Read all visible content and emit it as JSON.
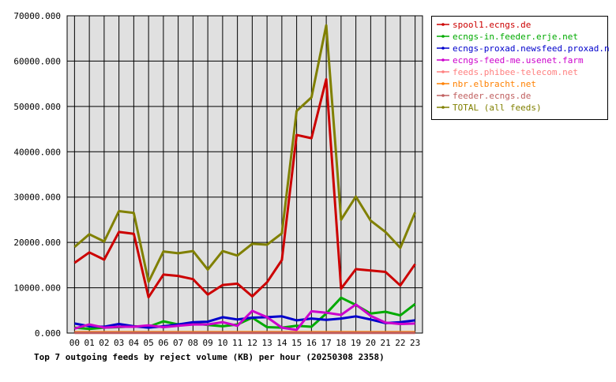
{
  "chart_data": {
    "type": "line",
    "title": "Top 7 outgoing feeds by reject volume (KB) per hour (20250308 2358)",
    "xlabel": "",
    "ylabel": "",
    "categories": [
      "00",
      "01",
      "02",
      "03",
      "04",
      "05",
      "06",
      "07",
      "08",
      "09",
      "10",
      "11",
      "12",
      "13",
      "14",
      "15",
      "16",
      "17",
      "18",
      "19",
      "20",
      "21",
      "22",
      "23"
    ],
    "ylim": [
      0,
      70000
    ],
    "yticks": [
      0,
      10000,
      20000,
      30000,
      40000,
      50000,
      60000,
      70000
    ],
    "ytick_labels": [
      "0.000",
      "10000.000",
      "20000.000",
      "30000.000",
      "40000.000",
      "50000.000",
      "60000.000",
      "70000.000"
    ],
    "grid": true,
    "legend_position": "right",
    "series": [
      {
        "name": "spool1.ecngs.de",
        "color": "#cc0000",
        "values": [
          15500,
          17800,
          16200,
          22300,
          21900,
          7900,
          12900,
          12600,
          11900,
          8500,
          10600,
          10900,
          8100,
          11200,
          16100,
          43700,
          43000,
          56000,
          9800,
          14100,
          13800,
          13500,
          10500,
          15200
        ]
      },
      {
        "name": "ecngs-in.feeder.erje.net",
        "color": "#00aa00",
        "values": [
          1200,
          900,
          1200,
          1300,
          1500,
          1400,
          2600,
          1900,
          2200,
          1800,
          1500,
          1900,
          3400,
          1300,
          1200,
          1600,
          1400,
          4300,
          7800,
          6200,
          4300,
          4700,
          3900,
          6400
        ]
      },
      {
        "name": "ecngs-proxad.newsfeed.proxad.net",
        "color": "#0000cc",
        "values": [
          2100,
          1500,
          1400,
          2000,
          1500,
          1200,
          1500,
          1900,
          2400,
          2500,
          3500,
          3000,
          3400,
          3500,
          3700,
          2800,
          3200,
          2900,
          3200,
          3700,
          3000,
          2200,
          2400,
          2800
        ]
      },
      {
        "name": "ecngs-feed-me.usenet.farm",
        "color": "#cc00cc",
        "values": [
          1000,
          1900,
          1200,
          1400,
          1400,
          1700,
          1300,
          1600,
          1900,
          1900,
          2400,
          1600,
          4900,
          3500,
          1200,
          700,
          4800,
          4500,
          4000,
          6300,
          3800,
          2300,
          2000,
          2100
        ]
      },
      {
        "name": "feeds.phibee-telecom.net",
        "color": "#ff8080",
        "values": [
          100,
          100,
          100,
          100,
          100,
          100,
          100,
          100,
          100,
          100,
          100,
          100,
          100,
          100,
          100,
          100,
          100,
          100,
          100,
          100,
          100,
          100,
          100,
          100
        ]
      },
      {
        "name": "nbr.elbracht.net",
        "color": "#ff8000",
        "values": [
          200,
          200,
          200,
          200,
          200,
          200,
          200,
          200,
          200,
          200,
          200,
          200,
          200,
          200,
          200,
          200,
          200,
          200,
          200,
          200,
          200,
          200,
          200,
          200
        ]
      },
      {
        "name": "feeder.ecngs.de",
        "color": "#c06060",
        "values": [
          50,
          50,
          50,
          50,
          50,
          50,
          50,
          50,
          50,
          50,
          50,
          50,
          50,
          50,
          50,
          50,
          50,
          50,
          50,
          50,
          50,
          50,
          50,
          50
        ]
      },
      {
        "name": "TOTAL (all feeds)",
        "color": "#808000",
        "values": [
          19000,
          21800,
          20200,
          26900,
          26500,
          11300,
          18000,
          17600,
          18100,
          14000,
          18100,
          17100,
          19700,
          19500,
          22000,
          49000,
          52000,
          67900,
          25000,
          30100,
          24800,
          22300,
          18800,
          26600
        ]
      }
    ]
  }
}
